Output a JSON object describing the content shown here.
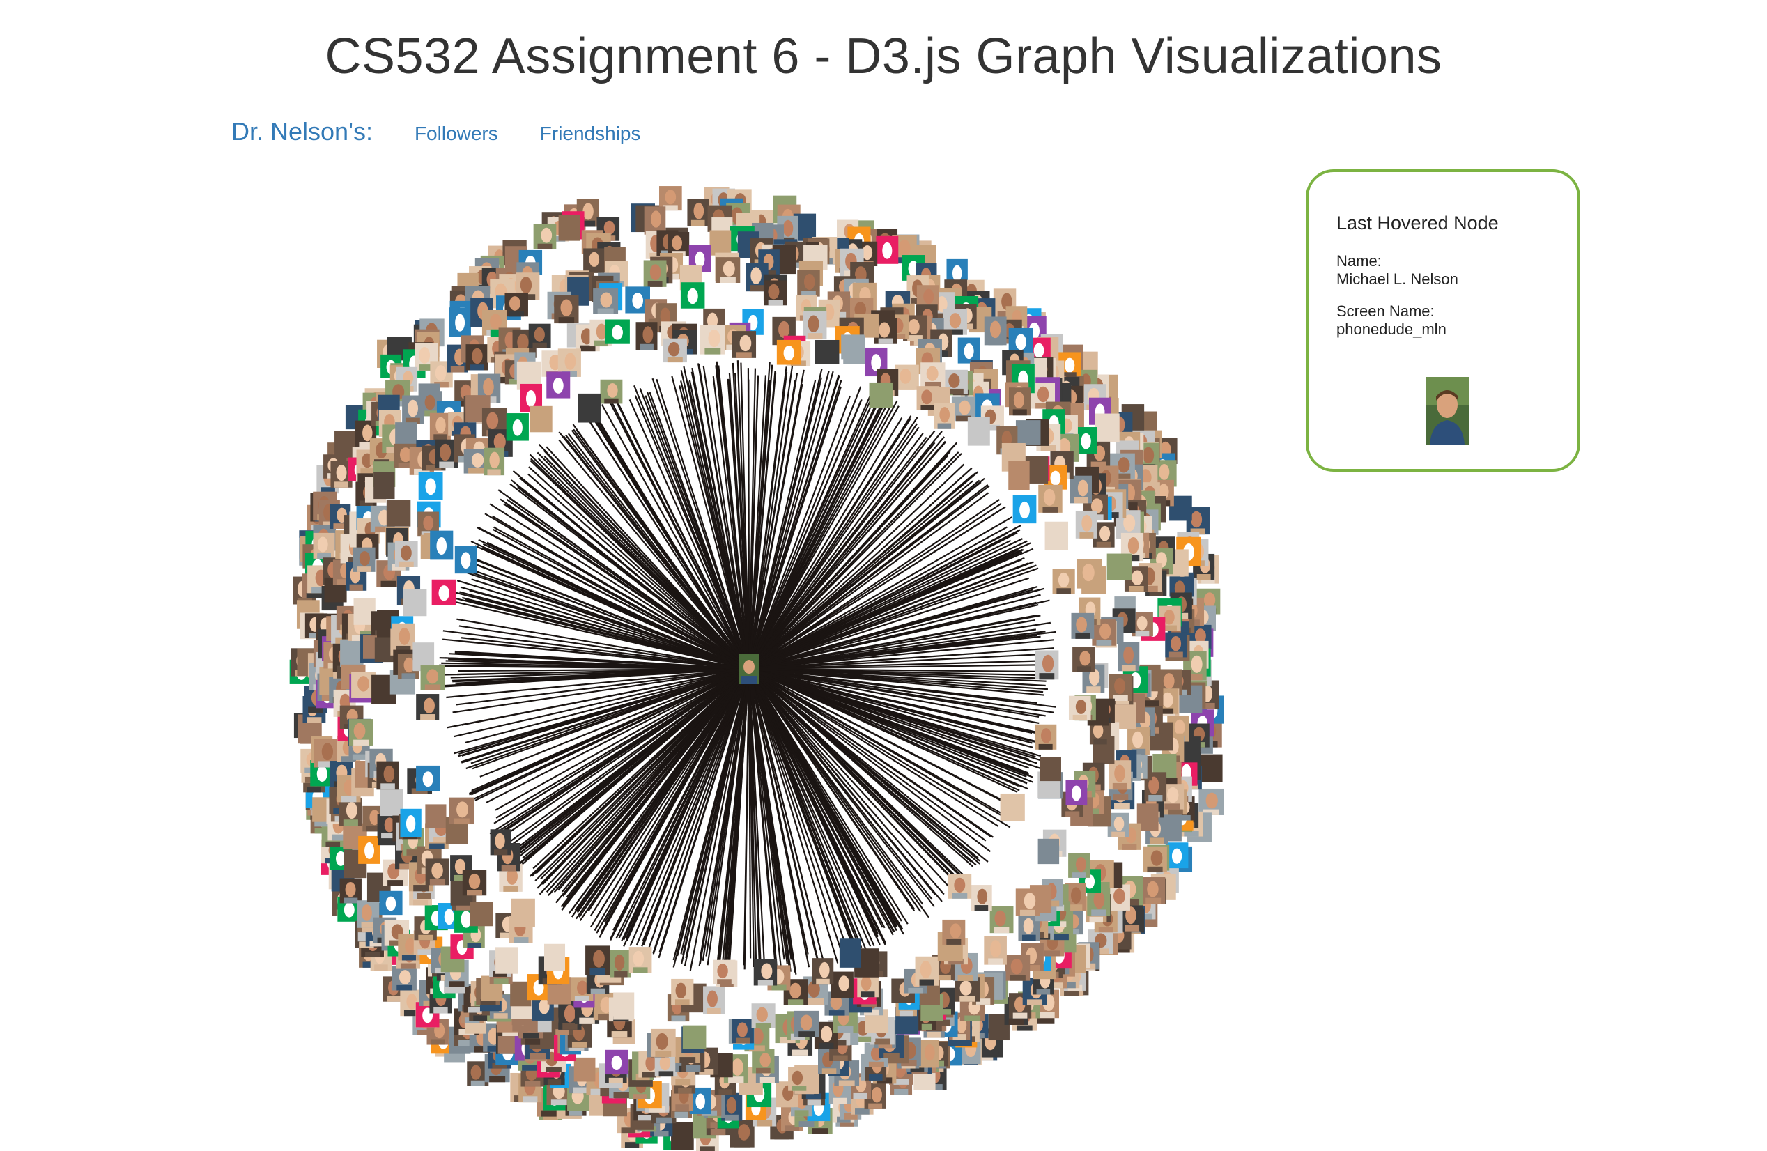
{
  "header": {
    "title": "CS532 Assignment 6 - D3.js Graph Visualizations"
  },
  "nav": {
    "label": "Dr. Nelson's:",
    "links": [
      {
        "label": "Followers"
      },
      {
        "label": "Friendships"
      }
    ]
  },
  "info_panel": {
    "heading": "Last Hovered Node",
    "name_label": "Name:",
    "name_value": "Michael L. Nelson",
    "screen_name_label": "Screen Name:",
    "screen_name_value": "phonedude_mln"
  },
  "colors": {
    "link": "#337ab7",
    "title": "#333333",
    "panel_border": "#7cb342",
    "edge": "#1a1412"
  }
}
